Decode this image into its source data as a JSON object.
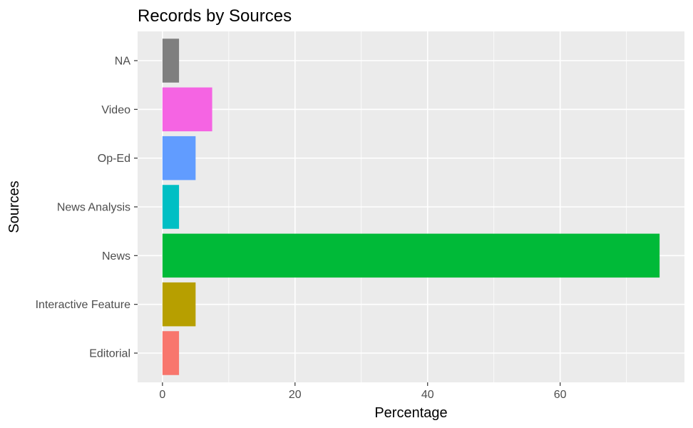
{
  "chart_data": {
    "type": "bar",
    "orientation": "horizontal",
    "title": "Records by Sources",
    "xlabel": "Percentage",
    "ylabel": "Sources",
    "categories": [
      "Editorial",
      "Interactive Feature",
      "News",
      "News Analysis",
      "Op-Ed",
      "Video",
      "NA"
    ],
    "values": [
      2.5,
      5,
      75,
      2.5,
      5,
      7.5,
      2.5
    ],
    "colors": [
      "#F8766D",
      "#B79F00",
      "#00BA38",
      "#00BFC4",
      "#619CFF",
      "#F564E3",
      "#7F7F7F"
    ],
    "x_ticks": [
      "0",
      "20",
      "40",
      "60"
    ],
    "xlim": [
      -3.75,
      78.75
    ],
    "grid": true,
    "legend": "none",
    "panel_background": "#EBEBEB",
    "grid_color": "#FFFFFF"
  }
}
